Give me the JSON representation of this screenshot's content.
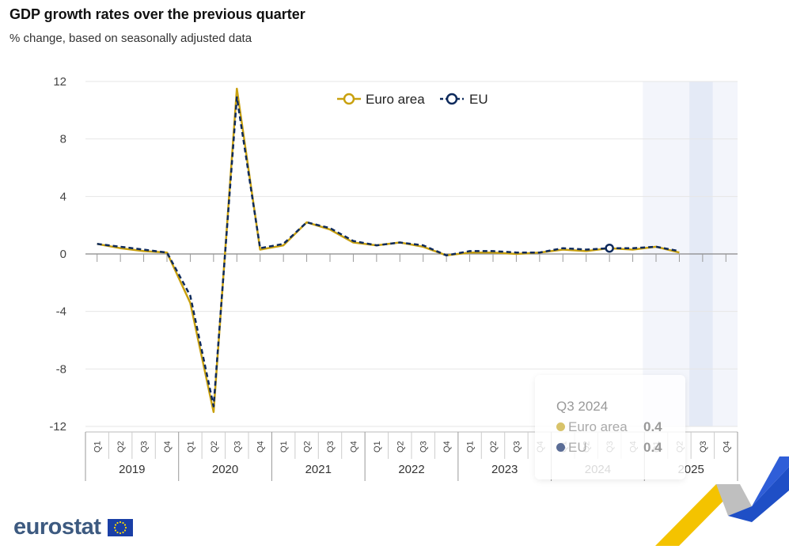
{
  "header": {
    "title": "GDP growth rates over the previous quarter",
    "subtitle": "% change, based on seasonally adjusted data"
  },
  "colors": {
    "euro_area": "#c9a10f",
    "eu": "#0e2a5c",
    "grid": "#e6e6e6",
    "forecast_band": "#f3f5fb",
    "forecast_band_dark": "#e4eaf6",
    "brand_blue": "#3d5a80"
  },
  "chart_data": {
    "type": "line",
    "title": "GDP growth rates over the previous quarter",
    "subtitle": "% change, based on seasonally adjusted data",
    "ylim": [
      -12,
      12
    ],
    "yticks": [
      "12",
      "8",
      "4",
      "0",
      "-4",
      "-8",
      "-12"
    ],
    "ytick_values": [
      12,
      8,
      4,
      0,
      -4,
      -8,
      -12
    ],
    "quarter_labels": [
      "Q1",
      "Q2",
      "Q3",
      "Q4",
      "Q1",
      "Q2",
      "Q3",
      "Q4",
      "Q1",
      "Q2",
      "Q3",
      "Q4",
      "Q1",
      "Q2",
      "Q3",
      "Q4",
      "Q1",
      "Q2",
      "Q3",
      "Q4",
      "Q1",
      "Q2",
      "Q3",
      "Q4",
      "Q1",
      "Q2",
      "Q3",
      "Q4"
    ],
    "years": [
      "2019",
      "2020",
      "2021",
      "2022",
      "2023",
      "2024",
      "2025"
    ],
    "legend_position": "top-center",
    "grid": true,
    "series": [
      {
        "name": "Euro area",
        "values": [
          0.7,
          0.4,
          0.2,
          0.1,
          -3.4,
          -11.0,
          11.5,
          0.3,
          0.6,
          2.2,
          1.7,
          0.8,
          0.6,
          0.8,
          0.5,
          -0.1,
          0.1,
          0.1,
          0.0,
          0.1,
          0.3,
          0.2,
          0.4,
          0.3,
          0.5,
          0.1,
          null,
          null
        ]
      },
      {
        "name": "EU",
        "values": [
          0.7,
          0.5,
          0.3,
          0.1,
          -2.9,
          -10.6,
          10.9,
          0.4,
          0.7,
          2.2,
          1.8,
          0.9,
          0.6,
          0.8,
          0.6,
          -0.1,
          0.2,
          0.2,
          0.1,
          0.1,
          0.4,
          0.3,
          0.4,
          0.4,
          0.5,
          0.2,
          null,
          null
        ]
      }
    ],
    "highlighted_point": {
      "index": 22
    }
  },
  "tooltip": {
    "title": "Q3 2024",
    "rows": [
      {
        "label": "Euro area",
        "value": "0.4"
      },
      {
        "label": "EU",
        "value": "0.4"
      }
    ]
  },
  "branding": {
    "logo_text": "eurostat"
  }
}
